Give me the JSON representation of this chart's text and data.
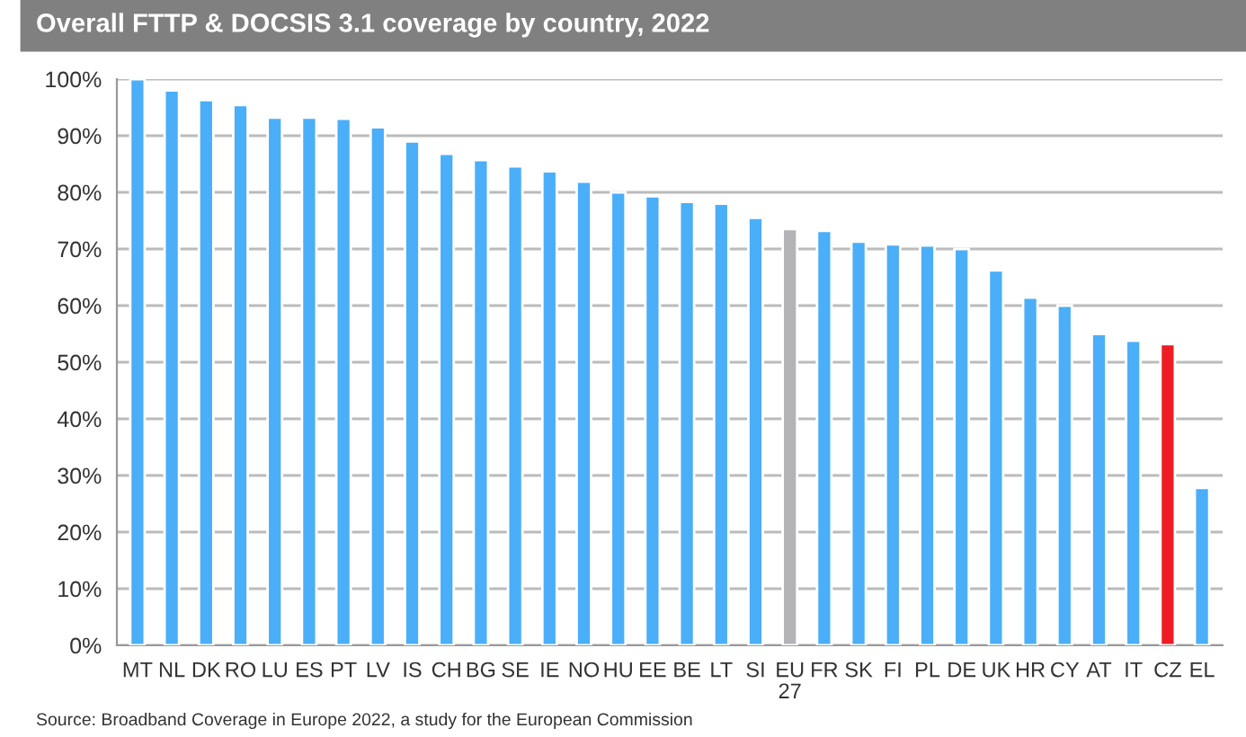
{
  "chart_data": {
    "type": "bar",
    "title": "Overall FTTP & DOCSIS 3.1 coverage by country, 2022",
    "categories": [
      "MT",
      "NL",
      "DK",
      "RO",
      "LU",
      "ES",
      "PT",
      "LV",
      "IS",
      "CH",
      "BG",
      "SE",
      "IE",
      "NO",
      "HU",
      "EE",
      "BE",
      "LT",
      "SI",
      "EU\n27",
      "FR",
      "SK",
      "FI",
      "PL",
      "DE",
      "UK",
      "HR",
      "CY",
      "AT",
      "IT",
      "CZ",
      "EL"
    ],
    "values": [
      100,
      98,
      96.3,
      95.4,
      93.2,
      93.2,
      93,
      91.5,
      89,
      86.8,
      85.7,
      84.6,
      83.7,
      81.9,
      80,
      79.3,
      78.3,
      78,
      75.5,
      73.5,
      73.2,
      71.3,
      70.8,
      70.6,
      70,
      66.2,
      61.4,
      60,
      55,
      53.8,
      53.2,
      27.8
    ],
    "colors": [
      "#4aaef8",
      "#4aaef8",
      "#4aaef8",
      "#4aaef8",
      "#4aaef8",
      "#4aaef8",
      "#4aaef8",
      "#4aaef8",
      "#4aaef8",
      "#4aaef8",
      "#4aaef8",
      "#4aaef8",
      "#4aaef8",
      "#4aaef8",
      "#4aaef8",
      "#4aaef8",
      "#4aaef8",
      "#4aaef8",
      "#4aaef8",
      "#b3b3b7",
      "#4aaef8",
      "#4aaef8",
      "#4aaef8",
      "#4aaef8",
      "#4aaef8",
      "#4aaef8",
      "#4aaef8",
      "#4aaef8",
      "#4aaef8",
      "#4aaef8",
      "#ee1c25",
      "#4aaef8"
    ],
    "ylim": [
      0,
      100
    ],
    "yticks": [
      {
        "value": 0,
        "label": "0%"
      },
      {
        "value": 10,
        "label": "10%"
      },
      {
        "value": 20,
        "label": "20%"
      },
      {
        "value": 30,
        "label": "30%"
      },
      {
        "value": 40,
        "label": "40%"
      },
      {
        "value": 50,
        "label": "50%"
      },
      {
        "value": 60,
        "label": "60%"
      },
      {
        "value": 70,
        "label": "70%"
      },
      {
        "value": 80,
        "label": "80%"
      },
      {
        "value": 90,
        "label": "90%"
      },
      {
        "value": 100,
        "label": "100%"
      }
    ],
    "grid": "y",
    "annotations": [
      "Source: Broadband Coverage in Europe 2022, a study for the European Commission"
    ]
  }
}
